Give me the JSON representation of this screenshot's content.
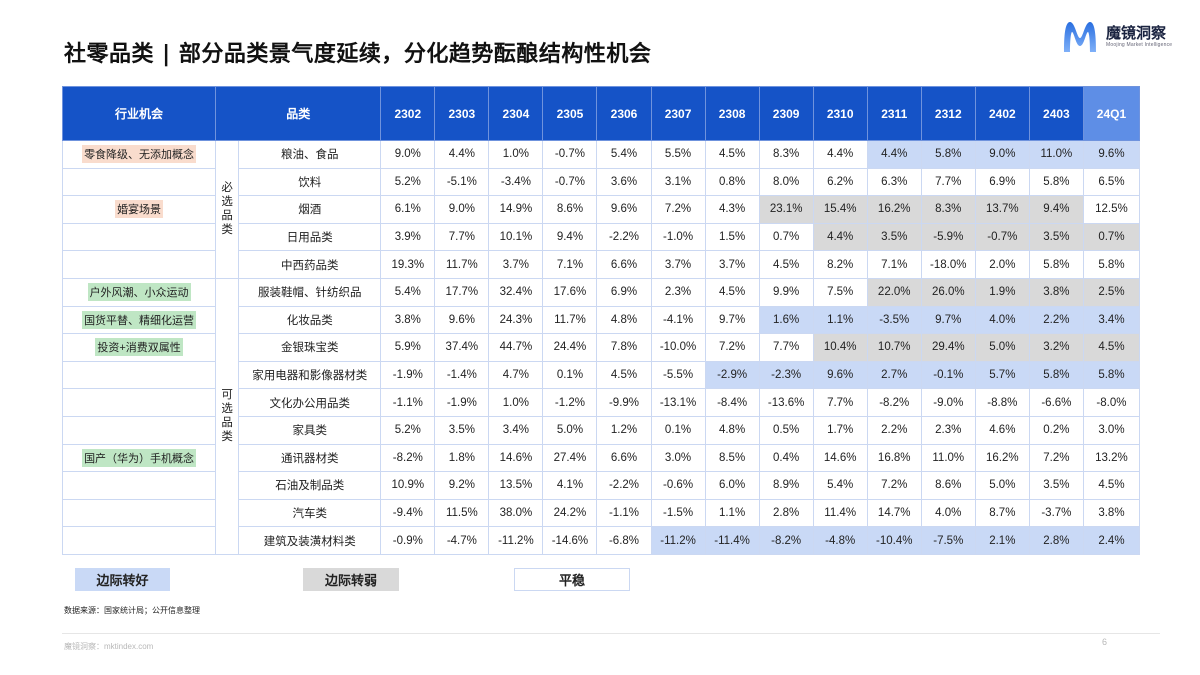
{
  "title": "社零品类 | 部分品类景气度延续，分化趋势酝酿结构性机会",
  "logo": {
    "cn": "魔镜洞察",
    "en": "Moojing Market Intelligence",
    "icon": "m-logo-icon",
    "colors": [
      "#2a6fe0",
      "#6fa5f7"
    ]
  },
  "table": {
    "headers": {
      "opportunity": "行业机会",
      "category": "品类",
      "periods": [
        "2302",
        "2303",
        "2304",
        "2305",
        "2306",
        "2307",
        "2308",
        "2309",
        "2310",
        "2311",
        "2312",
        "2402",
        "2403",
        "24Q1"
      ]
    },
    "groups": [
      {
        "label": "必\n选\n品\n类",
        "label_chars": [
          "必",
          "选",
          "品",
          "类"
        ],
        "rows": 5
      },
      {
        "label": "可\n选\n品\n类",
        "label_chars": [
          "可",
          "选",
          "品",
          "类"
        ],
        "rows": 10
      }
    ],
    "rows": [
      {
        "opportunity": "零食降级、无添加概念",
        "opp_color": "peach",
        "category": "粮油、食品",
        "values": [
          "9.0%",
          "4.4%",
          "1.0%",
          "-0.7%",
          "5.4%",
          "5.5%",
          "4.5%",
          "8.3%",
          "4.4%",
          "4.4%",
          "5.8%",
          "9.0%",
          "11.0%",
          "9.6%"
        ],
        "shade": [
          "",
          "",
          "",
          "",
          "",
          "",
          "",
          "",
          "",
          "blue",
          "blue",
          "blue",
          "blue",
          "blue"
        ]
      },
      {
        "opportunity": "",
        "category": "饮料",
        "values": [
          "5.2%",
          "-5.1%",
          "-3.4%",
          "-0.7%",
          "3.6%",
          "3.1%",
          "0.8%",
          "8.0%",
          "6.2%",
          "6.3%",
          "7.7%",
          "6.9%",
          "5.8%",
          "6.5%"
        ],
        "shade": [
          "",
          "",
          "",
          "",
          "",
          "",
          "",
          "",
          "",
          "",
          "",
          "",
          "",
          ""
        ]
      },
      {
        "opportunity": "婚宴场景",
        "opp_color": "peach",
        "category": "烟酒",
        "values": [
          "6.1%",
          "9.0%",
          "14.9%",
          "8.6%",
          "9.6%",
          "7.2%",
          "4.3%",
          "23.1%",
          "15.4%",
          "16.2%",
          "8.3%",
          "13.7%",
          "9.4%",
          "12.5%"
        ],
        "shade": [
          "",
          "",
          "",
          "",
          "",
          "",
          "",
          "grey",
          "grey",
          "grey",
          "grey",
          "grey",
          "grey",
          ""
        ]
      },
      {
        "opportunity": "",
        "category": "日用品类",
        "values": [
          "3.9%",
          "7.7%",
          "10.1%",
          "9.4%",
          "-2.2%",
          "-1.0%",
          "1.5%",
          "0.7%",
          "4.4%",
          "3.5%",
          "-5.9%",
          "-0.7%",
          "3.5%",
          "0.7%"
        ],
        "shade": [
          "",
          "",
          "",
          "",
          "",
          "",
          "",
          "",
          "grey",
          "grey",
          "grey",
          "grey",
          "grey",
          "grey"
        ]
      },
      {
        "opportunity": "",
        "category": "中西药品类",
        "values": [
          "19.3%",
          "11.7%",
          "3.7%",
          "7.1%",
          "6.6%",
          "3.7%",
          "3.7%",
          "4.5%",
          "8.2%",
          "7.1%",
          "-18.0%",
          "2.0%",
          "5.8%",
          "5.8%"
        ],
        "shade": [
          "",
          "",
          "",
          "",
          "",
          "",
          "",
          "",
          "",
          "",
          "",
          "",
          "",
          ""
        ]
      },
      {
        "opportunity": "户外风潮、小众运动",
        "opp_color": "green",
        "category": "服装鞋帽、针纺织品",
        "values": [
          "5.4%",
          "17.7%",
          "32.4%",
          "17.6%",
          "6.9%",
          "2.3%",
          "4.5%",
          "9.9%",
          "7.5%",
          "22.0%",
          "26.0%",
          "1.9%",
          "3.8%",
          "2.5%"
        ],
        "shade": [
          "",
          "",
          "",
          "",
          "",
          "",
          "",
          "",
          "",
          "grey",
          "grey",
          "grey",
          "grey",
          "grey"
        ]
      },
      {
        "opportunity": "国货平替、精细化运营",
        "opp_color": "green",
        "category": "化妆品类",
        "values": [
          "3.8%",
          "9.6%",
          "24.3%",
          "11.7%",
          "4.8%",
          "-4.1%",
          "9.7%",
          "1.6%",
          "1.1%",
          "-3.5%",
          "9.7%",
          "4.0%",
          "2.2%",
          "3.4%"
        ],
        "shade": [
          "",
          "",
          "",
          "",
          "",
          "",
          "",
          "blue",
          "blue",
          "blue",
          "blue",
          "blue",
          "blue",
          "blue"
        ]
      },
      {
        "opportunity": "投资+消费双属性",
        "opp_color": "green",
        "category": "金银珠宝类",
        "values": [
          "5.9%",
          "37.4%",
          "44.7%",
          "24.4%",
          "7.8%",
          "-10.0%",
          "7.2%",
          "7.7%",
          "10.4%",
          "10.7%",
          "29.4%",
          "5.0%",
          "3.2%",
          "4.5%"
        ],
        "shade": [
          "",
          "",
          "",
          "",
          "",
          "",
          "",
          "",
          "grey",
          "grey",
          "grey",
          "grey",
          "grey",
          "grey"
        ]
      },
      {
        "opportunity": "",
        "category": "家用电器和影像器材类",
        "values": [
          "-1.9%",
          "-1.4%",
          "4.7%",
          "0.1%",
          "4.5%",
          "-5.5%",
          "-2.9%",
          "-2.3%",
          "9.6%",
          "2.7%",
          "-0.1%",
          "5.7%",
          "5.8%",
          "5.8%"
        ],
        "shade": [
          "",
          "",
          "",
          "",
          "",
          "",
          "blue",
          "blue",
          "blue",
          "blue",
          "blue",
          "blue",
          "blue",
          "blue"
        ]
      },
      {
        "opportunity": "",
        "category": "文化办公用品类",
        "values": [
          "-1.1%",
          "-1.9%",
          "1.0%",
          "-1.2%",
          "-9.9%",
          "-13.1%",
          "-8.4%",
          "-13.6%",
          "7.7%",
          "-8.2%",
          "-9.0%",
          "-8.8%",
          "-6.6%",
          "-8.0%"
        ],
        "shade": [
          "",
          "",
          "",
          "",
          "",
          "",
          "",
          "",
          "",
          "",
          "",
          "",
          "",
          ""
        ]
      },
      {
        "opportunity": "",
        "category": "家具类",
        "values": [
          "5.2%",
          "3.5%",
          "3.4%",
          "5.0%",
          "1.2%",
          "0.1%",
          "4.8%",
          "0.5%",
          "1.7%",
          "2.2%",
          "2.3%",
          "4.6%",
          "0.2%",
          "3.0%"
        ],
        "shade": [
          "",
          "",
          "",
          "",
          "",
          "",
          "",
          "",
          "",
          "",
          "",
          "",
          "",
          ""
        ]
      },
      {
        "opportunity": "国产（华为）手机概念",
        "opp_color": "green",
        "category": "通讯器材类",
        "values": [
          "-8.2%",
          "1.8%",
          "14.6%",
          "27.4%",
          "6.6%",
          "3.0%",
          "8.5%",
          "0.4%",
          "14.6%",
          "16.8%",
          "11.0%",
          "16.2%",
          "7.2%",
          "13.2%"
        ],
        "shade": [
          "",
          "",
          "",
          "",
          "",
          "",
          "",
          "",
          "",
          "",
          "",
          "",
          "",
          ""
        ]
      },
      {
        "opportunity": "",
        "category": "石油及制品类",
        "values": [
          "10.9%",
          "9.2%",
          "13.5%",
          "4.1%",
          "-2.2%",
          "-0.6%",
          "6.0%",
          "8.9%",
          "5.4%",
          "7.2%",
          "8.6%",
          "5.0%",
          "3.5%",
          "4.5%"
        ],
        "shade": [
          "",
          "",
          "",
          "",
          "",
          "",
          "",
          "",
          "",
          "",
          "",
          "",
          "",
          ""
        ]
      },
      {
        "opportunity": "",
        "category": "汽车类",
        "values": [
          "-9.4%",
          "11.5%",
          "38.0%",
          "24.2%",
          "-1.1%",
          "-1.5%",
          "1.1%",
          "2.8%",
          "11.4%",
          "14.7%",
          "4.0%",
          "8.7%",
          "-3.7%",
          "3.8%"
        ],
        "shade": [
          "",
          "",
          "",
          "",
          "",
          "",
          "",
          "",
          "",
          "",
          "",
          "",
          "",
          ""
        ]
      },
      {
        "opportunity": "",
        "category": "建筑及装潢材料类",
        "values": [
          "-0.9%",
          "-4.7%",
          "-11.2%",
          "-14.6%",
          "-6.8%",
          "-11.2%",
          "-11.4%",
          "-8.2%",
          "-4.8%",
          "-10.4%",
          "-7.5%",
          "2.1%",
          "2.8%",
          "2.4%"
        ],
        "shade": [
          "",
          "",
          "",
          "",
          "",
          "blue",
          "blue",
          "blue",
          "blue",
          "blue",
          "blue",
          "blue",
          "blue",
          "blue"
        ]
      }
    ]
  },
  "legend": {
    "improve": "边际转好",
    "weaken": "边际转弱",
    "stable": "平稳"
  },
  "colors": {
    "header": "#1553c7",
    "header_q1": "#5e8ee6",
    "improve": "#c9d9f6",
    "weaken": "#d9d9d9",
    "peach": "#f9dccd",
    "green": "#bfe6c4"
  },
  "source": "数据来源：国家统计局；公开信息整理",
  "footer": {
    "left": "魔镜洞察：mktindex.com",
    "page": "6"
  }
}
